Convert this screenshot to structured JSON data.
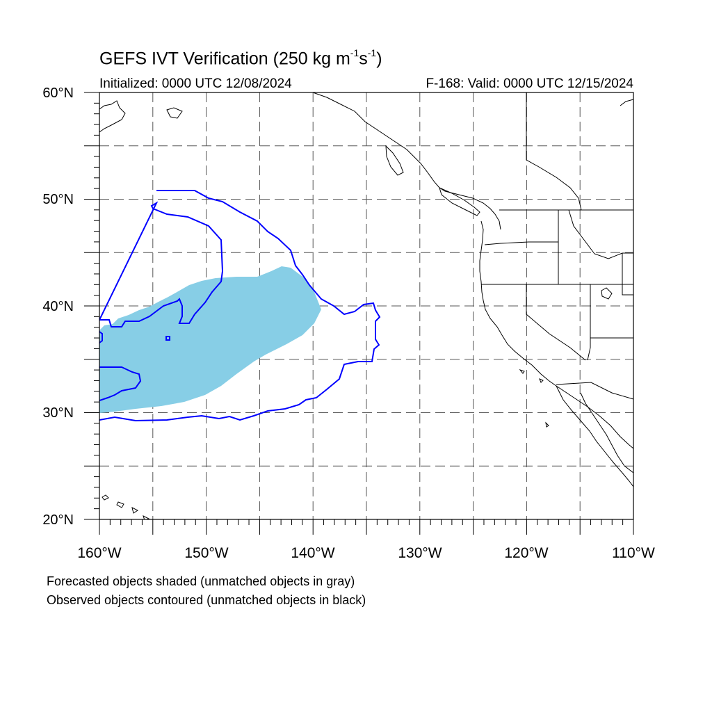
{
  "title": {
    "prefix": "GEFS IVT Verification (250 kg m",
    "exp1": "-1",
    "mid": "s",
    "exp2": "-1",
    "suffix": ")"
  },
  "init_text": "Initialized: 0000 UTC 12/08/2024",
  "valid_text": "F-168: Valid: 0000 UTC 12/15/2024",
  "map": {
    "lon_range": [
      -160,
      -110
    ],
    "lat_range": [
      20,
      60
    ],
    "grid": "dashed every 5 degrees",
    "lat_labels": [
      "60°N",
      "50°N",
      "40°N",
      "30°N",
      "20°N"
    ],
    "lon_labels": [
      "160°W",
      "150°W",
      "140°W",
      "130°W",
      "120°W",
      "110°W"
    ],
    "forecast_fill_color": "#87CEE6",
    "observed_contour_color": "#0000FF",
    "coast_color": "#000000"
  },
  "footnotes": [
    "Forecasted objects shaded (unmatched objects in gray)",
    "Observed objects contoured (unmatched objects in black)"
  ]
}
